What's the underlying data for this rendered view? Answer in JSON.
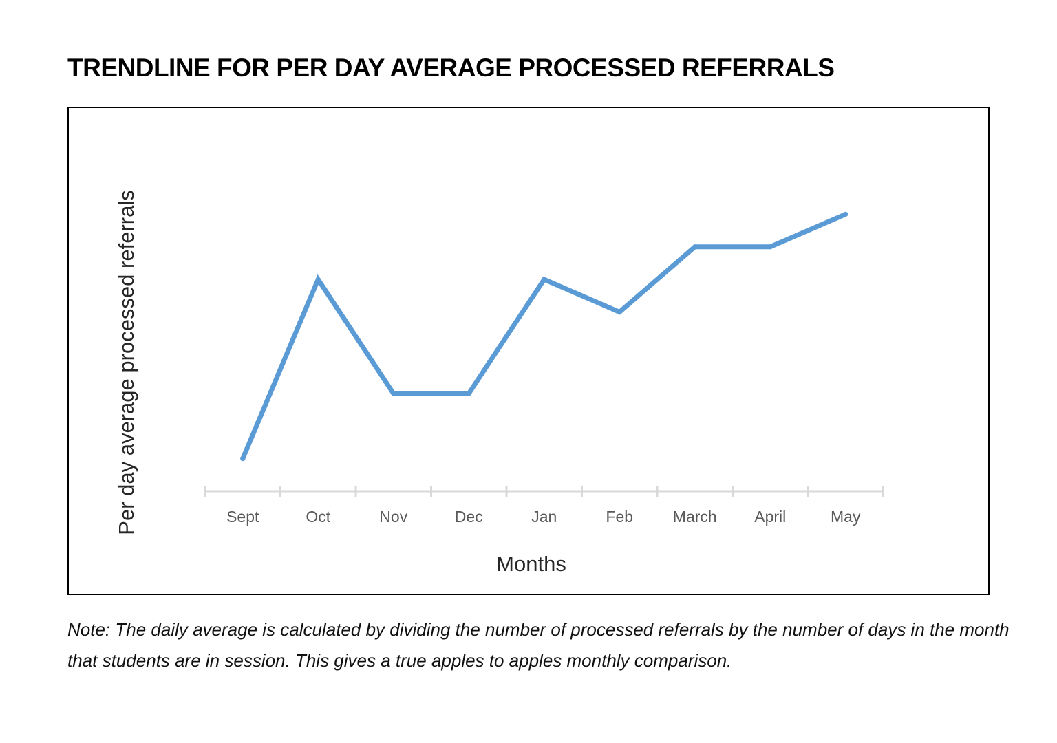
{
  "page": {
    "title": "TRENDLINE FOR PER DAY AVERAGE PROCESSED REFERRALS",
    "note": "Note: The daily average is calculated by dividing the number of processed referrals by the number of days in the month that students are in session. This gives a true apples to apples monthly comparison."
  },
  "chart_data": {
    "type": "line",
    "categories": [
      "Sept",
      "Oct",
      "Nov",
      "Dec",
      "Jan",
      "Feb",
      "March",
      "April",
      "May"
    ],
    "series": [
      {
        "values": [
          1.0,
          6.5,
          3.0,
          3.0,
          6.5,
          5.5,
          7.5,
          7.5,
          8.5
        ]
      }
    ],
    "title": "",
    "xlabel": "Months",
    "ylabel": "Per day average processed referrals",
    "ylim": [
      0,
      11
    ],
    "grid": false,
    "legend": "none",
    "colors": {
      "line": "#5b9bd5",
      "axis": "#d9d9d9",
      "tick_label": "#595959",
      "axis_title": "#262626"
    }
  }
}
